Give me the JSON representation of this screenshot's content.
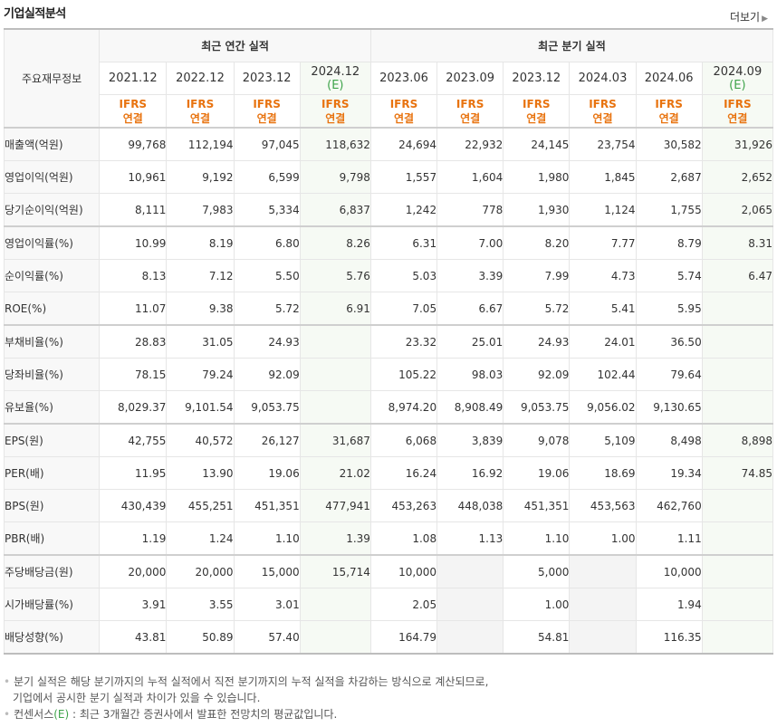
{
  "title": "기업실적분석",
  "more": "더보기",
  "header": {
    "row_label": "주요재무정보",
    "annual": "최근 연간 실적",
    "quarter": "최근 분기 실적",
    "ifrs1": "IFRS",
    "ifrs2": "연결",
    "est": "(E)",
    "periods": [
      "2021.12",
      "2022.12",
      "2023.12",
      "2024.12",
      "2023.06",
      "2023.09",
      "2023.12",
      "2024.03",
      "2024.06",
      "2024.09"
    ]
  },
  "rows": [
    {
      "label": "매출액(억원)",
      "values": [
        "99,768",
        "112,194",
        "97,045",
        "118,632",
        "24,694",
        "22,932",
        "24,145",
        "23,754",
        "30,582",
        "31,926"
      ]
    },
    {
      "label": "영업이익(억원)",
      "values": [
        "10,961",
        "9,192",
        "6,599",
        "9,798",
        "1,557",
        "1,604",
        "1,980",
        "1,845",
        "2,687",
        "2,652"
      ]
    },
    {
      "label": "당기순이익(억원)",
      "values": [
        "8,111",
        "7,983",
        "5,334",
        "6,837",
        "1,242",
        "778",
        "1,930",
        "1,124",
        "1,755",
        "2,065"
      ]
    },
    {
      "label": "영업이익률(%)",
      "values": [
        "10.99",
        "8.19",
        "6.80",
        "8.26",
        "6.31",
        "7.00",
        "8.20",
        "7.77",
        "8.79",
        "8.31"
      ]
    },
    {
      "label": "순이익률(%)",
      "values": [
        "8.13",
        "7.12",
        "5.50",
        "5.76",
        "5.03",
        "3.39",
        "7.99",
        "4.73",
        "5.74",
        "6.47"
      ]
    },
    {
      "label": "ROE(%)",
      "values": [
        "11.07",
        "9.38",
        "5.72",
        "6.91",
        "7.05",
        "6.67",
        "5.72",
        "5.41",
        "5.95",
        ""
      ]
    },
    {
      "label": "부채비율(%)",
      "values": [
        "28.83",
        "31.05",
        "24.93",
        "",
        "23.32",
        "25.01",
        "24.93",
        "24.01",
        "36.50",
        ""
      ]
    },
    {
      "label": "당좌비율(%)",
      "values": [
        "78.15",
        "79.24",
        "92.09",
        "",
        "105.22",
        "98.03",
        "92.09",
        "102.44",
        "79.64",
        ""
      ]
    },
    {
      "label": "유보율(%)",
      "values": [
        "8,029.37",
        "9,101.54",
        "9,053.75",
        "",
        "8,974.20",
        "8,908.49",
        "9,053.75",
        "9,056.02",
        "9,130.65",
        ""
      ]
    },
    {
      "label": "EPS(원)",
      "values": [
        "42,755",
        "40,572",
        "26,127",
        "31,687",
        "6,068",
        "3,839",
        "9,078",
        "5,109",
        "8,498",
        "8,898"
      ]
    },
    {
      "label": "PER(배)",
      "values": [
        "11.95",
        "13.90",
        "19.06",
        "21.02",
        "16.24",
        "16.92",
        "19.06",
        "18.69",
        "19.34",
        "74.85"
      ]
    },
    {
      "label": "BPS(원)",
      "values": [
        "430,439",
        "455,251",
        "451,351",
        "477,941",
        "453,263",
        "448,038",
        "451,351",
        "453,563",
        "462,760",
        ""
      ]
    },
    {
      "label": "PBR(배)",
      "values": [
        "1.19",
        "1.24",
        "1.10",
        "1.39",
        "1.08",
        "1.13",
        "1.10",
        "1.00",
        "1.11",
        ""
      ]
    },
    {
      "label": "주당배당금(원)",
      "values": [
        "20,000",
        "20,000",
        "15,000",
        "15,714",
        "10,000",
        "",
        "5,000",
        "",
        "10,000",
        ""
      ]
    },
    {
      "label": "시가배당률(%)",
      "values": [
        "3.91",
        "3.55",
        "3.01",
        "",
        "2.05",
        "",
        "1.00",
        "",
        "1.94",
        ""
      ]
    },
    {
      "label": "배당성향(%)",
      "values": [
        "43.81",
        "50.89",
        "57.40",
        "",
        "164.79",
        "",
        "54.81",
        "",
        "116.35",
        ""
      ]
    }
  ],
  "footnotes": {
    "line1": "분기 실적은 해당 분기까지의 누적 실적에서 직전 분기까지의 누적 실적을 차감하는 방식으로 계산되므로,",
    "line2": "기업에서 공시한 분기 실적과 차이가 있을 수 있습니다.",
    "line3a": "컨센서스",
    "line3b": "(E)",
    "line3c": " : 최근 3개월간 증권사에서 발표한 전망치의 평균값입니다."
  }
}
